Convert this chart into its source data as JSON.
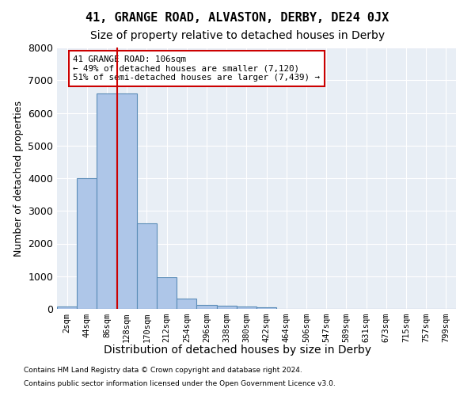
{
  "suptitle": "41, GRANGE ROAD, ALVASTON, DERBY, DE24 0JX",
  "title": "Size of property relative to detached houses in Derby",
  "xlabel": "Distribution of detached houses by size in Derby",
  "ylabel": "Number of detached properties",
  "bar_values": [
    75,
    4000,
    6600,
    6600,
    2620,
    960,
    320,
    130,
    105,
    75,
    60,
    0,
    0,
    0,
    0,
    0,
    0,
    0,
    0,
    0
  ],
  "tick_labels": [
    "2sqm",
    "44sqm",
    "86sqm",
    "128sqm",
    "170sqm",
    "212sqm",
    "254sqm",
    "296sqm",
    "338sqm",
    "380sqm",
    "422sqm",
    "464sqm",
    "506sqm",
    "547sqm",
    "589sqm",
    "631sqm",
    "673sqm",
    "715sqm",
    "757sqm",
    "799sqm"
  ],
  "bar_color": "#aec6e8",
  "bar_edge_color": "#5b8db8",
  "red_line_x": 2.5,
  "annotation_text": "41 GRANGE ROAD: 106sqm\n← 49% of detached houses are smaller (7,120)\n51% of semi-detached houses are larger (7,439) →",
  "annotation_box_color": "#ffffff",
  "annotation_box_edge": "#cc0000",
  "red_line_color": "#cc0000",
  "ylim": [
    0,
    8000
  ],
  "yticks": [
    0,
    1000,
    2000,
    3000,
    4000,
    5000,
    6000,
    7000,
    8000
  ],
  "bg_color": "#e8eef5",
  "footer1": "Contains HM Land Registry data © Crown copyright and database right 2024.",
  "footer2": "Contains public sector information licensed under the Open Government Licence v3.0.",
  "title_fontsize": 10,
  "suptitle_fontsize": 11,
  "xlabel_fontsize": 10,
  "ylabel_fontsize": 9,
  "tick_fontsize": 7.5
}
